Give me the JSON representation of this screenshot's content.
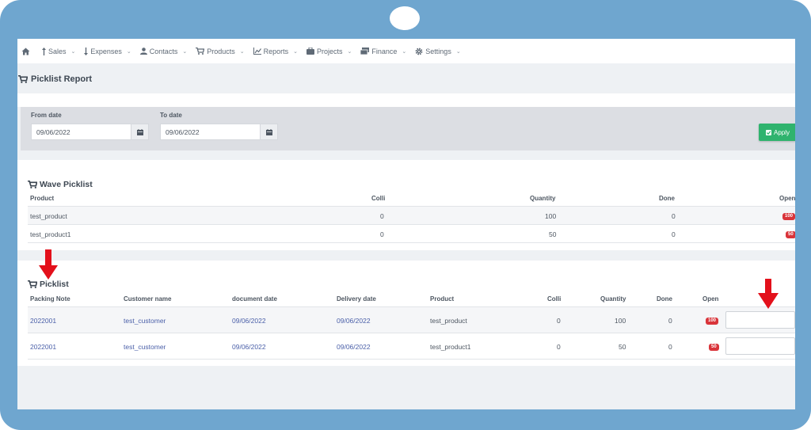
{
  "nav": {
    "items": [
      {
        "icon": "arrow-up-icon",
        "label": "Sales"
      },
      {
        "icon": "arrow-down-icon",
        "label": "Expenses"
      },
      {
        "icon": "user-icon",
        "label": "Contacts"
      },
      {
        "icon": "cart-icon",
        "label": "Products"
      },
      {
        "icon": "chart-icon",
        "label": "Reports"
      },
      {
        "icon": "briefcase-icon",
        "label": "Projects"
      },
      {
        "icon": "money-icon",
        "label": "Finance"
      },
      {
        "icon": "gear-icon",
        "label": "Settings"
      }
    ]
  },
  "report": {
    "title": "Picklist Report"
  },
  "filter": {
    "from_label": "From date",
    "from_value": "09/06/2022",
    "to_label": "To date",
    "to_value": "09/06/2022",
    "apply_label": "Apply"
  },
  "wave": {
    "title": "Wave Picklist",
    "headers": {
      "product": "Product",
      "colli": "Colli",
      "quantity": "Quantity",
      "done": "Done",
      "open": "Open"
    },
    "rows": [
      {
        "product": "test_product",
        "colli": "0",
        "quantity": "100",
        "done": "0",
        "open": "100"
      },
      {
        "product": "test_product1",
        "colli": "0",
        "quantity": "50",
        "done": "0",
        "open": "50"
      }
    ]
  },
  "picklist": {
    "title": "Picklist",
    "headers": {
      "packing_note": "Packing Note",
      "customer": "Customer name",
      "document_date": "document date",
      "delivery_date": "Delivery date",
      "product": "Product",
      "colli": "Colli",
      "quantity": "Quantity",
      "done": "Done",
      "open": "Open"
    },
    "rows": [
      {
        "packing_note": "2022001",
        "customer": "test_customer",
        "document_date": "09/06/2022",
        "delivery_date": "09/06/2022",
        "product": "test_product",
        "colli": "0",
        "quantity": "100",
        "done": "0",
        "open": "100"
      },
      {
        "packing_note": "2022001",
        "customer": "test_customer",
        "document_date": "09/06/2022",
        "delivery_date": "09/06/2022",
        "product": "test_product1",
        "colli": "0",
        "quantity": "50",
        "done": "0",
        "open": "50"
      }
    ]
  },
  "colors": {
    "frame": "#6fa6cf",
    "link": "#4a5fa8",
    "badge": "#d9343a",
    "apply": "#2fb36e",
    "arrow": "#e3101b"
  }
}
